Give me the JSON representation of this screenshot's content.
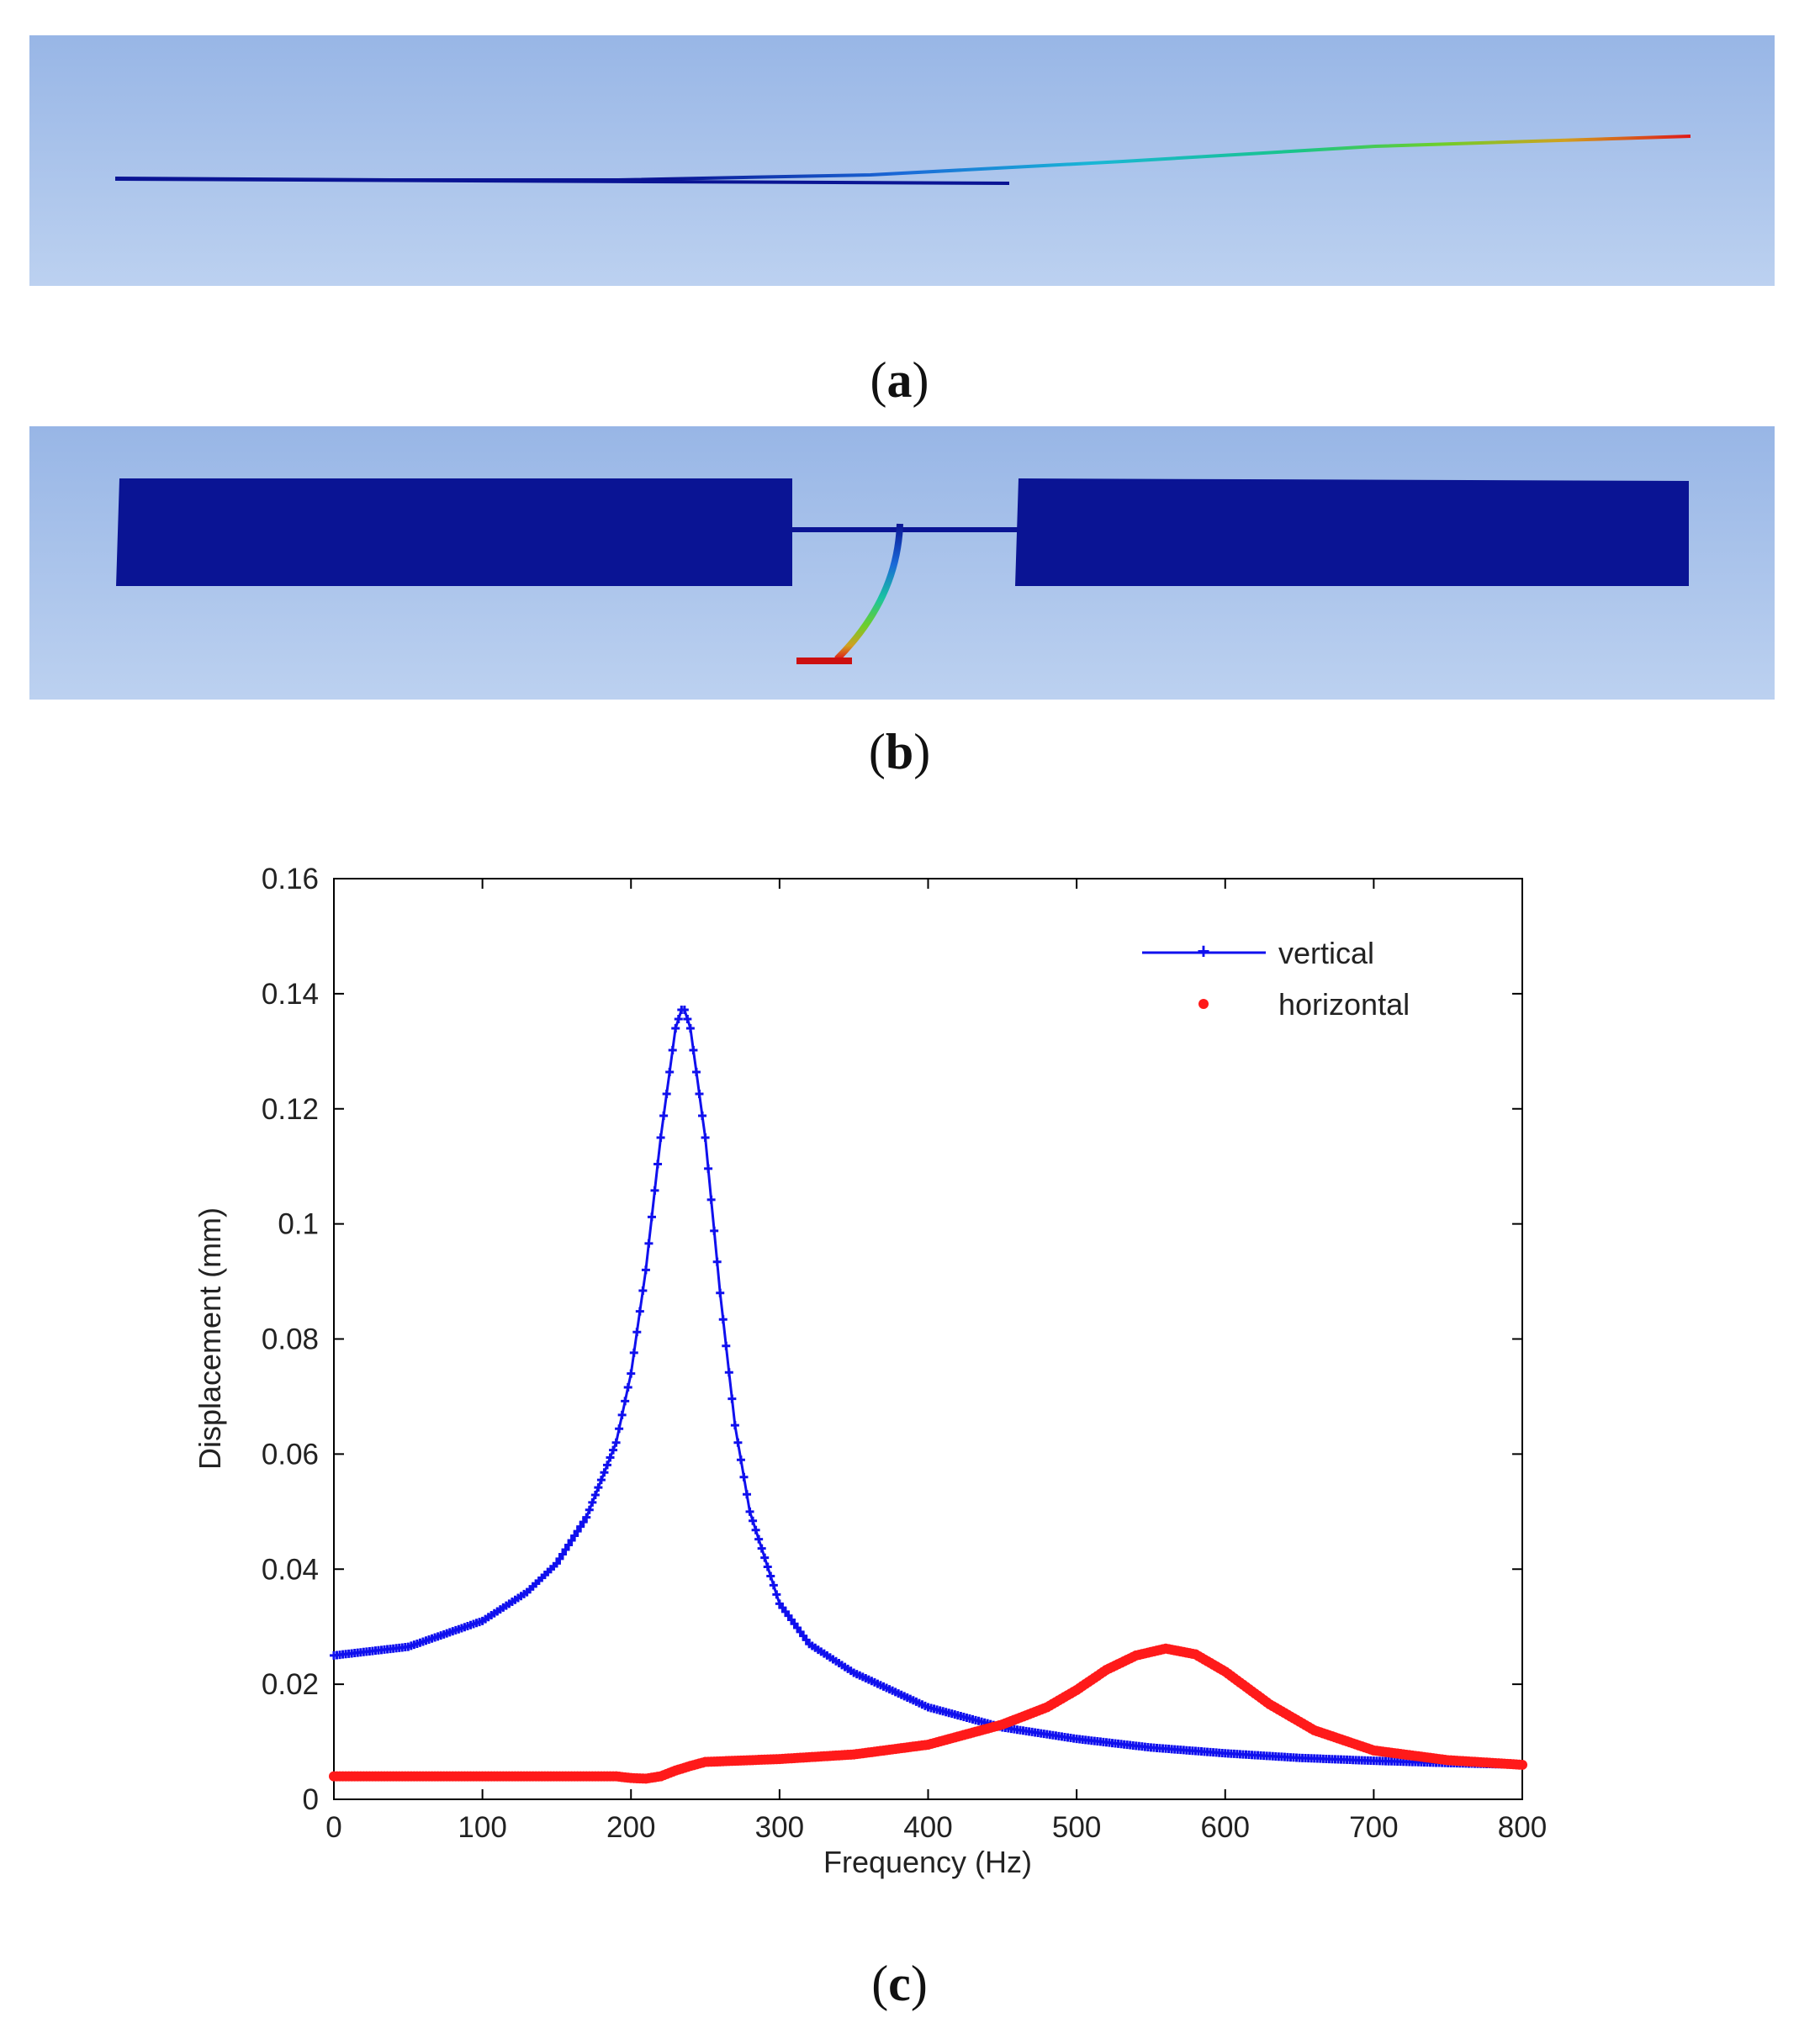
{
  "captions": {
    "a": "a",
    "b": "b",
    "c": "c"
  },
  "colors": {
    "vertical": "#1010ee",
    "horizontal": "#ff1a1a",
    "beam": "#0a1494"
  },
  "chart_data": {
    "type": "scatter",
    "xlabel": "Frequency  (Hz)",
    "ylabel": "Displacement  (mm)",
    "xlim": [
      0,
      800
    ],
    "ylim": [
      0,
      0.16
    ],
    "xticks": [
      0,
      100,
      200,
      300,
      400,
      500,
      600,
      700,
      800
    ],
    "yticks": [
      0,
      0.02,
      0.04,
      0.06,
      0.08,
      0.1,
      0.12,
      0.14,
      0.16
    ],
    "xtick_labels": [
      "0",
      "100",
      "200",
      "300",
      "400",
      "500",
      "600",
      "700",
      "800"
    ],
    "ytick_labels": [
      "0",
      "0.02",
      "0.04",
      "0.06",
      "0.08",
      "0.1",
      "0.12",
      "0.14",
      "0.16"
    ],
    "legend_position": "top-right",
    "series": [
      {
        "name": "vertical",
        "marker": "line-plus",
        "x": [
          0,
          50,
          100,
          130,
          150,
          170,
          190,
          200,
          210,
          220,
          230,
          235,
          240,
          250,
          260,
          270,
          280,
          300,
          320,
          350,
          400,
          450,
          500,
          550,
          600,
          650,
          700,
          750,
          800
        ],
        "y": [
          0.025,
          0.0265,
          0.031,
          0.036,
          0.041,
          0.049,
          0.062,
          0.074,
          0.092,
          0.115,
          0.134,
          0.138,
          0.134,
          0.115,
          0.088,
          0.065,
          0.05,
          0.034,
          0.027,
          0.022,
          0.016,
          0.0125,
          0.0105,
          0.009,
          0.008,
          0.0072,
          0.0067,
          0.0063,
          0.006
        ]
      },
      {
        "name": "horizontal",
        "marker": "dot",
        "x": [
          0,
          50,
          100,
          150,
          190,
          200,
          210,
          220,
          230,
          240,
          250,
          280,
          300,
          350,
          400,
          450,
          480,
          500,
          520,
          540,
          560,
          580,
          600,
          630,
          660,
          700,
          750,
          800
        ],
        "y": [
          0.004,
          0.004,
          0.004,
          0.004,
          0.004,
          0.0037,
          0.0036,
          0.004,
          0.005,
          0.0058,
          0.0065,
          0.0068,
          0.007,
          0.0078,
          0.0095,
          0.013,
          0.016,
          0.019,
          0.0225,
          0.025,
          0.0262,
          0.0252,
          0.0222,
          0.0165,
          0.012,
          0.0085,
          0.0068,
          0.006
        ]
      }
    ]
  }
}
